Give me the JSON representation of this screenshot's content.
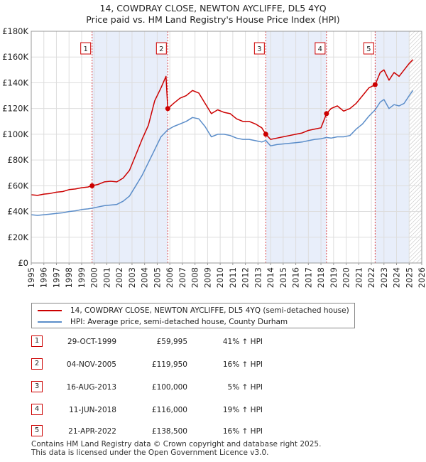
{
  "title": "14, COWDRAY CLOSE, NEWTON AYCLIFFE, DL5 4YQ",
  "subtitle": "Price paid vs. HM Land Registry's House Price Index (HPI)",
  "chart_data": {
    "type": "line",
    "xlim": [
      1995,
      2026
    ],
    "ylim": [
      0,
      180000
    ],
    "x_ticks": [
      "1995",
      "1996",
      "1997",
      "1998",
      "1999",
      "2000",
      "2001",
      "2002",
      "2003",
      "2004",
      "2005",
      "2006",
      "2007",
      "2008",
      "2009",
      "2010",
      "2011",
      "2012",
      "2013",
      "2014",
      "2015",
      "2016",
      "2017",
      "2018",
      "2019",
      "2020",
      "2021",
      "2022",
      "2023",
      "2024",
      "2025",
      "2026"
    ],
    "y_ticks": [
      {
        "value": 0,
        "label": "£0"
      },
      {
        "value": 20000,
        "label": "£20K"
      },
      {
        "value": 40000,
        "label": "£40K"
      },
      {
        "value": 60000,
        "label": "£60K"
      },
      {
        "value": 80000,
        "label": "£80K"
      },
      {
        "value": 100000,
        "label": "£100K"
      },
      {
        "value": 120000,
        "label": "£120K"
      },
      {
        "value": 140000,
        "label": "£140K"
      },
      {
        "value": 160000,
        "label": "£160K"
      },
      {
        "value": 180000,
        "label": "£180K"
      }
    ],
    "grid": true,
    "colors": {
      "property": "#cc0000",
      "hpi": "#5b8dc9",
      "band": "#e8eefa",
      "marker_line": "#dd4444"
    },
    "series": [
      {
        "name": "14, COWDRAY CLOSE, NEWTON AYCLIFFE, DL5 4YQ (semi-detached house)",
        "color": "#cc0000",
        "points": [
          [
            1995.0,
            53000
          ],
          [
            1995.5,
            52500
          ],
          [
            1996.0,
            53500
          ],
          [
            1996.5,
            54000
          ],
          [
            1997.0,
            55000
          ],
          [
            1997.5,
            55500
          ],
          [
            1998.0,
            57000
          ],
          [
            1998.5,
            57500
          ],
          [
            1999.0,
            58500
          ],
          [
            1999.5,
            59000
          ],
          [
            1999.83,
            59995
          ],
          [
            2000.3,
            61000
          ],
          [
            2000.8,
            63000
          ],
          [
            2001.3,
            63500
          ],
          [
            2001.8,
            63000
          ],
          [
            2002.3,
            66000
          ],
          [
            2002.8,
            72000
          ],
          [
            2003.3,
            84000
          ],
          [
            2003.8,
            96000
          ],
          [
            2004.3,
            107000
          ],
          [
            2004.8,
            126000
          ],
          [
            2005.3,
            136000
          ],
          [
            2005.7,
            145000
          ],
          [
            2005.84,
            119950
          ],
          [
            2006.3,
            124000
          ],
          [
            2006.8,
            128000
          ],
          [
            2007.3,
            130000
          ],
          [
            2007.8,
            134000
          ],
          [
            2008.3,
            132000
          ],
          [
            2008.8,
            124000
          ],
          [
            2009.3,
            116000
          ],
          [
            2009.8,
            119000
          ],
          [
            2010.3,
            117000
          ],
          [
            2010.8,
            116000
          ],
          [
            2011.3,
            112000
          ],
          [
            2011.8,
            110000
          ],
          [
            2012.3,
            110000
          ],
          [
            2012.8,
            108000
          ],
          [
            2013.3,
            105000
          ],
          [
            2013.62,
            100000
          ],
          [
            2014.0,
            96000
          ],
          [
            2014.5,
            97000
          ],
          [
            2015.0,
            98000
          ],
          [
            2015.5,
            99000
          ],
          [
            2016.0,
            100000
          ],
          [
            2016.5,
            101000
          ],
          [
            2017.0,
            103000
          ],
          [
            2017.5,
            104000
          ],
          [
            2018.0,
            105000
          ],
          [
            2018.44,
            116000
          ],
          [
            2018.8,
            120000
          ],
          [
            2019.3,
            122000
          ],
          [
            2019.8,
            118000
          ],
          [
            2020.3,
            120000
          ],
          [
            2020.8,
            124000
          ],
          [
            2021.3,
            130000
          ],
          [
            2021.8,
            136000
          ],
          [
            2022.3,
            138500
          ],
          [
            2022.7,
            148000
          ],
          [
            2023.0,
            150000
          ],
          [
            2023.4,
            142000
          ],
          [
            2023.8,
            148000
          ],
          [
            2024.2,
            145000
          ],
          [
            2024.6,
            150000
          ],
          [
            2025.0,
            155000
          ],
          [
            2025.3,
            158000
          ]
        ]
      },
      {
        "name": "HPI: Average price, semi-detached house, County Durham",
        "color": "#5b8dc9",
        "points": [
          [
            1995.0,
            37500
          ],
          [
            1995.5,
            37000
          ],
          [
            1996.0,
            37500
          ],
          [
            1996.5,
            38000
          ],
          [
            1997.0,
            38500
          ],
          [
            1997.5,
            39000
          ],
          [
            1998.0,
            40000
          ],
          [
            1998.5,
            40500
          ],
          [
            1999.0,
            41500
          ],
          [
            1999.5,
            42000
          ],
          [
            1999.83,
            42500
          ],
          [
            2000.3,
            43500
          ],
          [
            2000.8,
            44500
          ],
          [
            2001.3,
            45000
          ],
          [
            2001.8,
            45500
          ],
          [
            2002.3,
            48000
          ],
          [
            2002.8,
            52000
          ],
          [
            2003.3,
            60000
          ],
          [
            2003.8,
            68000
          ],
          [
            2004.3,
            78000
          ],
          [
            2004.8,
            88000
          ],
          [
            2005.3,
            98000
          ],
          [
            2005.84,
            103500
          ],
          [
            2006.3,
            106000
          ],
          [
            2006.8,
            108000
          ],
          [
            2007.3,
            110000
          ],
          [
            2007.8,
            113000
          ],
          [
            2008.3,
            112000
          ],
          [
            2008.8,
            106000
          ],
          [
            2009.3,
            98000
          ],
          [
            2009.8,
            100000
          ],
          [
            2010.3,
            100000
          ],
          [
            2010.8,
            99000
          ],
          [
            2011.3,
            97000
          ],
          [
            2011.8,
            96000
          ],
          [
            2012.3,
            96000
          ],
          [
            2012.8,
            95000
          ],
          [
            2013.3,
            94000
          ],
          [
            2013.62,
            95200
          ],
          [
            2014.0,
            91000
          ],
          [
            2014.5,
            92000
          ],
          [
            2015.0,
            92500
          ],
          [
            2015.5,
            93000
          ],
          [
            2016.0,
            93500
          ],
          [
            2016.5,
            94000
          ],
          [
            2017.0,
            95000
          ],
          [
            2017.5,
            96000
          ],
          [
            2018.0,
            96500
          ],
          [
            2018.44,
            97500
          ],
          [
            2018.8,
            97000
          ],
          [
            2019.3,
            98000
          ],
          [
            2019.8,
            98000
          ],
          [
            2020.3,
            99000
          ],
          [
            2020.8,
            104000
          ],
          [
            2021.3,
            108000
          ],
          [
            2021.8,
            114000
          ],
          [
            2022.3,
            119000
          ],
          [
            2022.7,
            125000
          ],
          [
            2023.0,
            127000
          ],
          [
            2023.4,
            120000
          ],
          [
            2023.8,
            123000
          ],
          [
            2024.2,
            122000
          ],
          [
            2024.6,
            124000
          ],
          [
            2025.0,
            130000
          ],
          [
            2025.3,
            134000
          ]
        ]
      }
    ],
    "sales": [
      {
        "id": "1",
        "x": 1999.83,
        "price": 59995
      },
      {
        "id": "2",
        "x": 2005.84,
        "price": 119950
      },
      {
        "id": "3",
        "x": 2013.62,
        "price": 100000
      },
      {
        "id": "4",
        "x": 2018.44,
        "price": 116000
      },
      {
        "id": "5",
        "x": 2022.3,
        "price": 138500
      }
    ],
    "shaded_ranges": [
      [
        1999.83,
        2005.84
      ],
      [
        2013.62,
        2018.44
      ],
      [
        2022.3,
        2025.0
      ]
    ],
    "hatch_from": 2025.0
  },
  "legend": {
    "property_label": "14, COWDRAY CLOSE, NEWTON AYCLIFFE, DL5 4YQ (semi-detached house)",
    "hpi_label": "HPI: Average price, semi-detached house, County Durham"
  },
  "sales_table": [
    {
      "num": "1",
      "date": "29-OCT-1999",
      "price": "£59,995",
      "hpi": "41% ↑ HPI"
    },
    {
      "num": "2",
      "date": "04-NOV-2005",
      "price": "£119,950",
      "hpi": "16% ↑ HPI"
    },
    {
      "num": "3",
      "date": "16-AUG-2013",
      "price": "£100,000",
      "hpi": "5% ↑ HPI"
    },
    {
      "num": "4",
      "date": "11-JUN-2018",
      "price": "£116,000",
      "hpi": "19% ↑ HPI"
    },
    {
      "num": "5",
      "date": "21-APR-2022",
      "price": "£138,500",
      "hpi": "16% ↑ HPI"
    }
  ],
  "footer": {
    "line1": "Contains HM Land Registry data © Crown copyright and database right 2025.",
    "line2": "This data is licensed under the Open Government Licence v3.0."
  }
}
